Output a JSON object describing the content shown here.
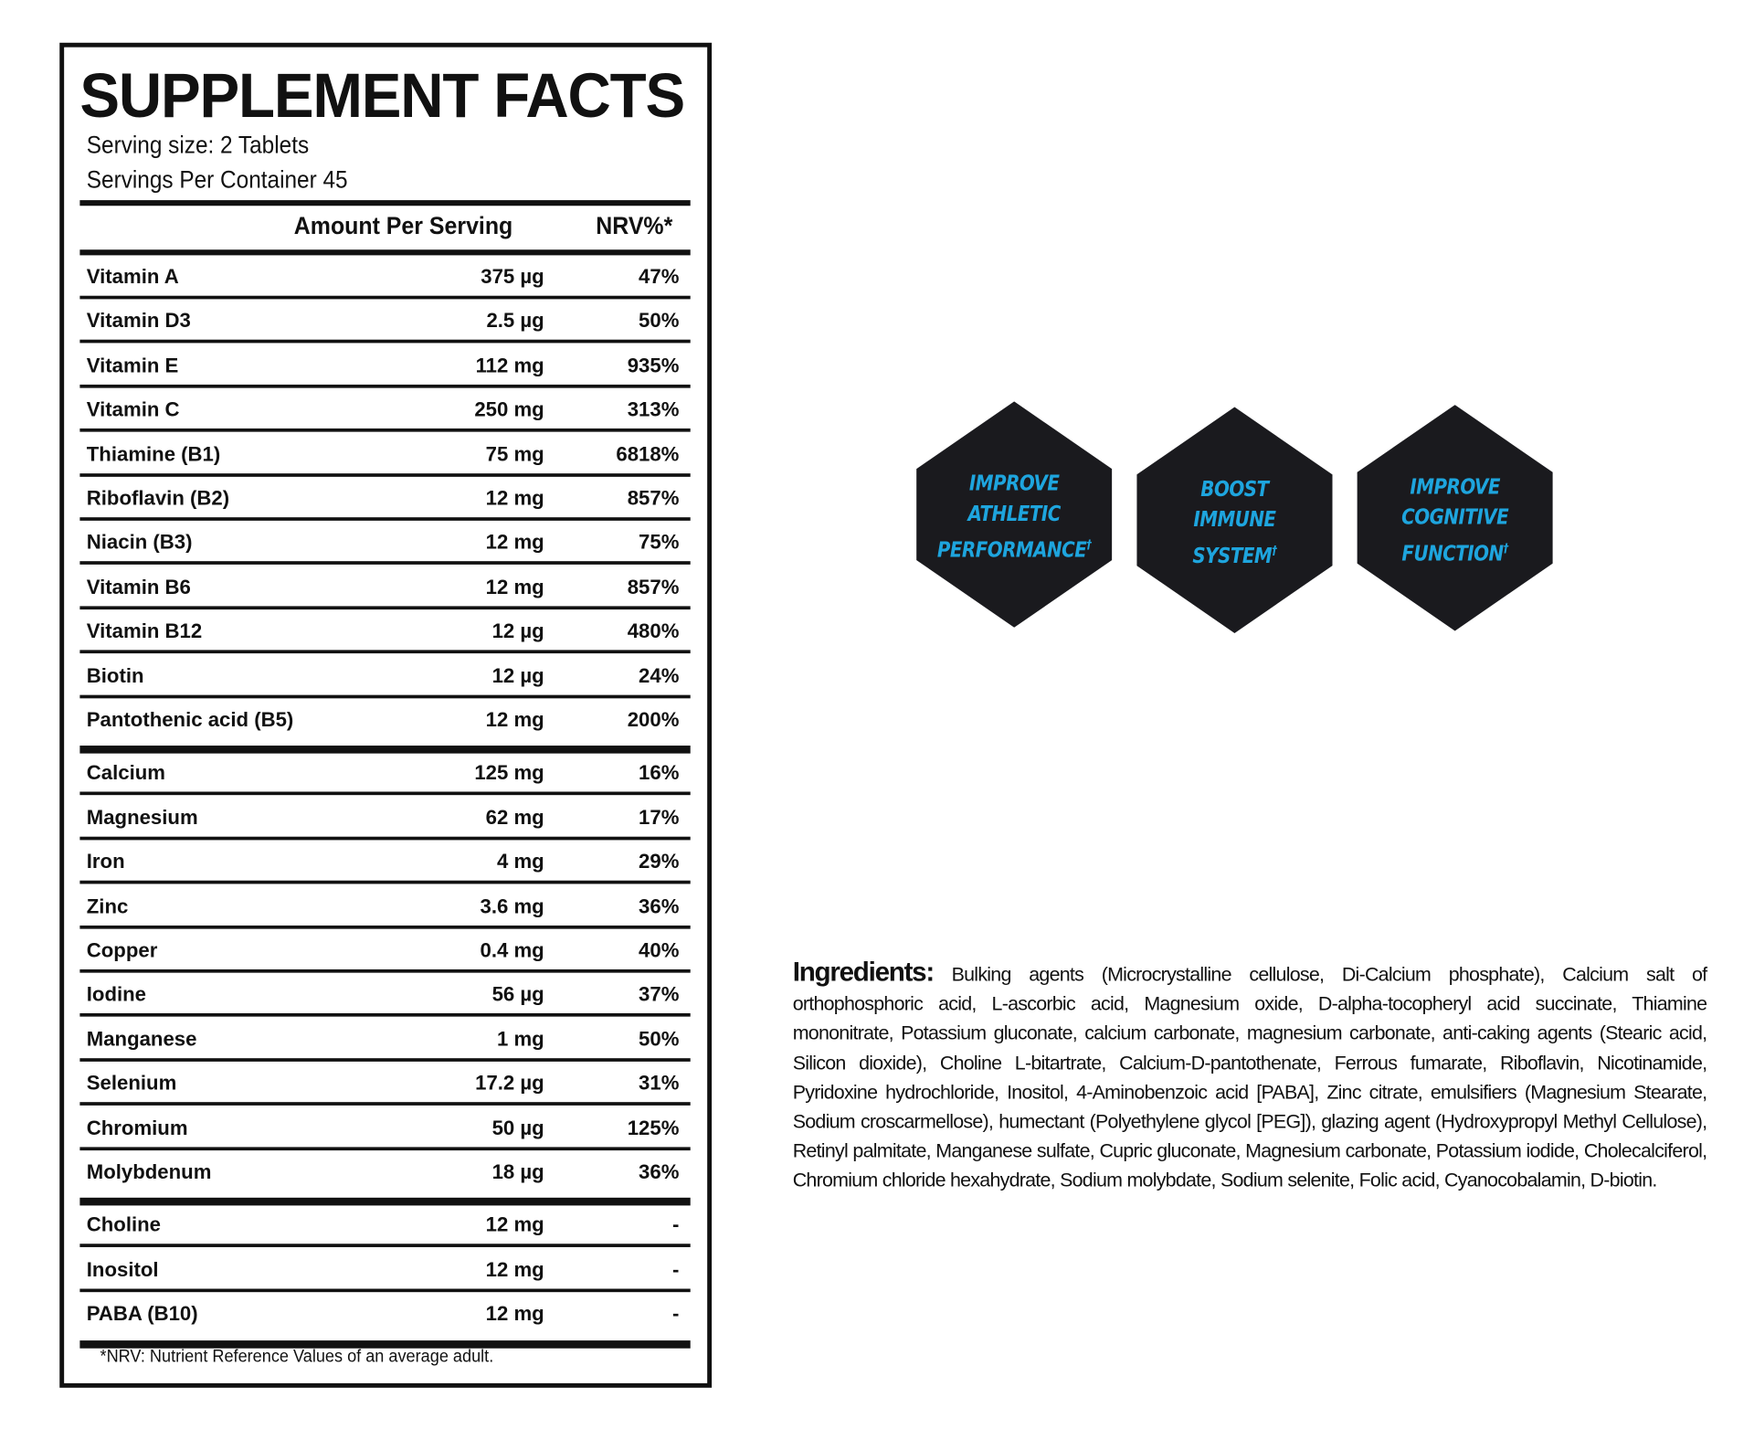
{
  "label": {
    "title": "SUPPLEMENT FACTS",
    "serving_size": "Serving size: 2 Tablets",
    "servings_per_container": "Servings Per Container 45",
    "col_amount": "Amount Per Serving",
    "col_nrv": "NRV%*",
    "sections": [
      [
        {
          "name": "Vitamin A",
          "amount": "375 µg",
          "nrv": "47%"
        },
        {
          "name": "Vitamin D3",
          "amount": "2.5 µg",
          "nrv": "50%"
        },
        {
          "name": "Vitamin E",
          "amount": "112 mg",
          "nrv": "935%"
        },
        {
          "name": "Vitamin C",
          "amount": "250 mg",
          "nrv": "313%"
        },
        {
          "name": "Thiamine (B1)",
          "amount": "75 mg",
          "nrv": "6818%"
        },
        {
          "name": "Riboflavin (B2)",
          "amount": "12 mg",
          "nrv": "857%"
        },
        {
          "name": "Niacin (B3)",
          "amount": "12 mg",
          "nrv": "75%"
        },
        {
          "name": "Vitamin B6",
          "amount": "12 mg",
          "nrv": "857%"
        },
        {
          "name": "Vitamin B12",
          "amount": "12 µg",
          "nrv": "480%"
        },
        {
          "name": "Biotin",
          "amount": "12 µg",
          "nrv": "24%"
        },
        {
          "name": "Pantothenic acid (B5)",
          "amount": "12 mg",
          "nrv": "200%"
        }
      ],
      [
        {
          "name": "Calcium",
          "amount": "125 mg",
          "nrv": "16%"
        },
        {
          "name": "Magnesium",
          "amount": "62 mg",
          "nrv": "17%"
        },
        {
          "name": "Iron",
          "amount": "4 mg",
          "nrv": "29%"
        },
        {
          "name": "Zinc",
          "amount": "3.6 mg",
          "nrv": "36%"
        },
        {
          "name": "Copper",
          "amount": "0.4 mg",
          "nrv": "40%"
        },
        {
          "name": "Iodine",
          "amount": "56 µg",
          "nrv": "37%"
        },
        {
          "name": "Manganese",
          "amount": "1 mg",
          "nrv": "50%"
        },
        {
          "name": "Selenium",
          "amount": "17.2 µg",
          "nrv": "31%"
        },
        {
          "name": "Chromium",
          "amount": "50 µg",
          "nrv": "125%"
        },
        {
          "name": "Molybdenum",
          "amount": "18 µg",
          "nrv": "36%"
        }
      ],
      [
        {
          "name": "Choline",
          "amount": "12 mg",
          "nrv": "-"
        },
        {
          "name": "Inositol",
          "amount": "12 mg",
          "nrv": "-"
        },
        {
          "name": "PABA (B10)",
          "amount": "12 mg",
          "nrv": "-"
        }
      ]
    ],
    "footnote": "*NRV: Nutrient Reference Values of an average adult."
  },
  "badges": [
    {
      "lines": [
        "IMPROVE",
        "ATHLETIC",
        "PERFORMANCE"
      ],
      "mark": "†"
    },
    {
      "lines": [
        "BOOST",
        "IMMUNE",
        "SYSTEM"
      ],
      "mark": "†"
    },
    {
      "lines": [
        "IMPROVE",
        "COGNITIVE",
        "FUNCTION"
      ],
      "mark": "†"
    }
  ],
  "colors": {
    "badge_fill": "#1a1a1e",
    "badge_text": "#1ea5de",
    "ink": "#111111"
  },
  "ingredients": {
    "heading": "Ingredients:",
    "text": "Bulking agents (Microcrystalline cellulose, Di-Calcium phosphate), Calcium salt of orthophosphoric acid, L-ascorbic acid,  Magnesium oxide, D-alpha-tocopheryl acid succinate, Thiamine mononitrate, Potassium gluconate, calcium carbonate, magnesium carbonate, anti-caking agents (Stearic acid, Silicon dioxide), Choline L-bitartrate, Calcium-D-pantothenate, Ferrous fumarate, Riboflavin, Nicotinamide,  Pyridoxine hydrochloride, Inositol, 4-Aminobenzoic acid [PABA], Zinc citrate, emulsifiers (Magnesium Stearate, Sodium croscarmellose),  humectant (Polyethylene glycol [PEG]), glazing agent (Hydroxypropyl Methyl Cellulose), Retinyl palmitate, Manganese sulfate,  Cupric gluconate, Magnesium carbonate, Potassium iodide, Cholecalciferol, Chromium chloride hexahydrate,  Sodium molybdate, Sodium selenite, Folic acid, Cyanocobalamin, D-biotin."
  }
}
